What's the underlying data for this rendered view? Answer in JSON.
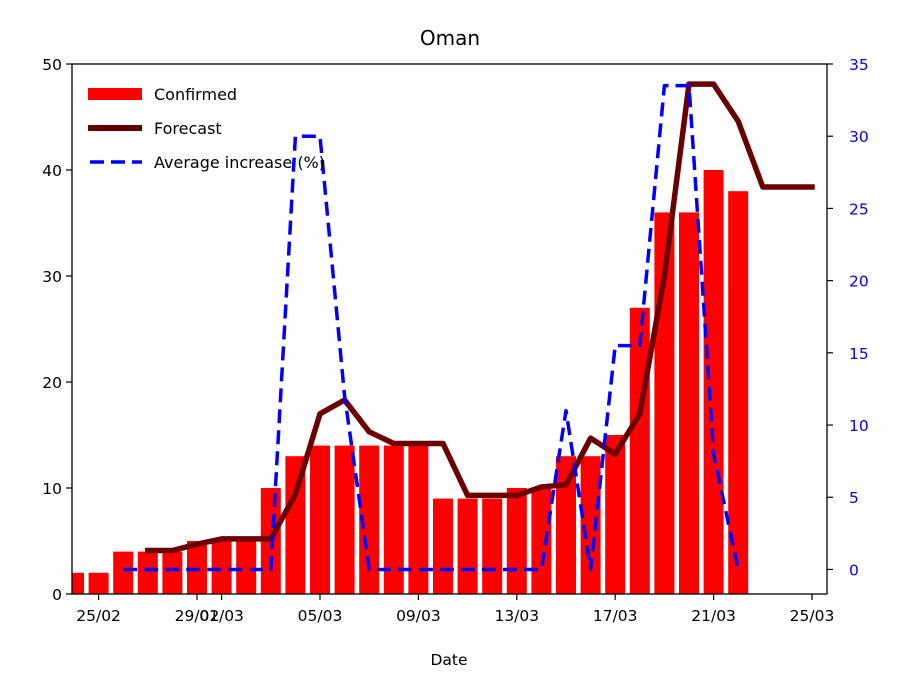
{
  "chart_data": {
    "type": "bar",
    "title": "Oman",
    "xlabel": "Date",
    "ylabel": "",
    "ylim": [
      0,
      50
    ],
    "y2lim": [
      -1.7,
      35
    ],
    "yticks": [
      0,
      10,
      20,
      30,
      40,
      50
    ],
    "y2ticks": [
      0,
      5,
      10,
      15,
      20,
      25,
      30,
      35
    ],
    "xticks": [
      {
        "date": "2020-02-25",
        "label": "25/02"
      },
      {
        "date": "2020-02-29",
        "label": "29/02"
      },
      {
        "date": "2020-03-01",
        "label": "01/03"
      },
      {
        "date": "2020-03-05",
        "label": "05/03"
      },
      {
        "date": "2020-03-09",
        "label": "09/03"
      },
      {
        "date": "2020-03-13",
        "label": "13/03"
      },
      {
        "date": "2020-03-17",
        "label": "17/03"
      },
      {
        "date": "2020-03-21",
        "label": "21/03"
      },
      {
        "date": "2020-03-25",
        "label": "25/03"
      }
    ],
    "x_range": [
      "2020-02-24",
      "2020-03-26"
    ],
    "legend_position": "top-left",
    "colors": {
      "confirmed": "#ff0000",
      "forecast": "#6b0000",
      "average": "#0000ff",
      "right_axis": "#0000ff"
    },
    "series": [
      {
        "name": "Confirmed",
        "type": "bar",
        "axis": "left",
        "x": [
          "2020-02-24",
          "2020-02-25",
          "2020-02-26",
          "2020-02-27",
          "2020-02-28",
          "2020-02-29",
          "2020-03-01",
          "2020-03-02",
          "2020-03-03",
          "2020-03-04",
          "2020-03-05",
          "2020-03-06",
          "2020-03-07",
          "2020-03-08",
          "2020-03-09",
          "2020-03-10",
          "2020-03-11",
          "2020-03-12",
          "2020-03-13",
          "2020-03-14",
          "2020-03-15",
          "2020-03-16",
          "2020-03-17",
          "2020-03-18",
          "2020-03-19",
          "2020-03-20",
          "2020-03-21",
          "2020-03-22"
        ],
        "values": [
          2,
          2,
          4,
          4,
          4,
          5,
          5,
          5,
          10,
          13,
          14,
          14,
          14,
          14,
          14,
          9,
          9,
          9,
          10,
          10,
          13,
          13,
          15,
          27,
          36,
          36,
          40,
          38
        ]
      },
      {
        "name": "Forecast",
        "type": "line",
        "axis": "left",
        "x": [
          "2020-02-27",
          "2020-02-28",
          "2020-02-29",
          "2020-03-01",
          "2020-03-02",
          "2020-03-03",
          "2020-03-04",
          "2020-03-05",
          "2020-03-06",
          "2020-03-07",
          "2020-03-08",
          "2020-03-09",
          "2020-03-10",
          "2020-03-11",
          "2020-03-12",
          "2020-03-13",
          "2020-03-14",
          "2020-03-15",
          "2020-03-16",
          "2020-03-17",
          "2020-03-18",
          "2020-03-19",
          "2020-03-20",
          "2020-03-21",
          "2020-03-22",
          "2020-03-23",
          "2020-03-24",
          "2020-03-25"
        ],
        "values": [
          4.1,
          4.1,
          4.7,
          5.2,
          5.2,
          5.2,
          9.4,
          17.0,
          18.3,
          15.3,
          14.2,
          14.2,
          14.2,
          9.3,
          9.3,
          9.3,
          10.1,
          10.3,
          14.7,
          13.2,
          17.0,
          30.0,
          48.1,
          48.1,
          44.6,
          38.4,
          38.4,
          38.4
        ]
      },
      {
        "name": "Average increase (%)",
        "type": "line",
        "style": "dashed",
        "axis": "right",
        "x": [
          "2020-02-26",
          "2020-02-27",
          "2020-02-28",
          "2020-02-29",
          "2020-03-01",
          "2020-03-02",
          "2020-03-03",
          "2020-03-04",
          "2020-03-05",
          "2020-03-06",
          "2020-03-07",
          "2020-03-08",
          "2020-03-09",
          "2020-03-10",
          "2020-03-11",
          "2020-03-12",
          "2020-03-13",
          "2020-03-14",
          "2020-03-15",
          "2020-03-16",
          "2020-03-17",
          "2020-03-18",
          "2020-03-19",
          "2020-03-20",
          "2020-03-21",
          "2020-03-22"
        ],
        "values": [
          0,
          0,
          0,
          0,
          0,
          0,
          0,
          30,
          30,
          12,
          0,
          0,
          0,
          0,
          0,
          0,
          0,
          0,
          11,
          0,
          15.5,
          15.5,
          33.5,
          33.5,
          8,
          0
        ]
      }
    ]
  }
}
